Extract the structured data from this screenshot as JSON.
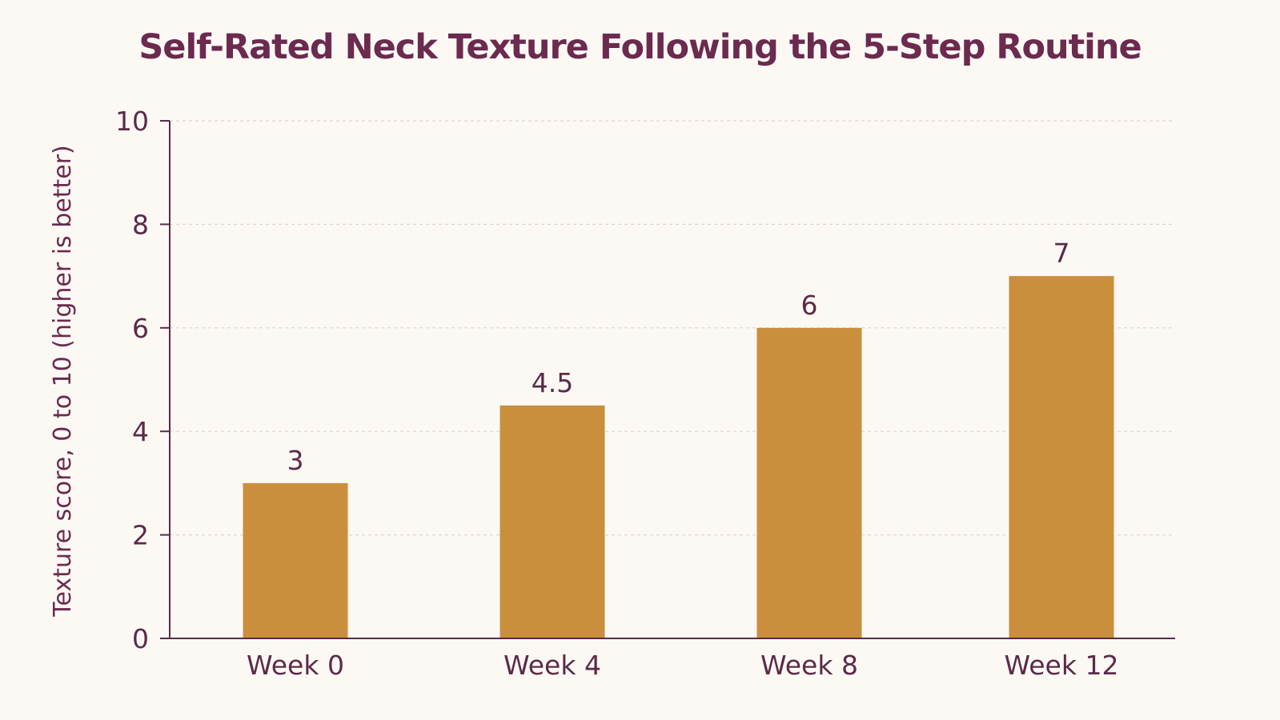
{
  "chart_data": {
    "type": "bar",
    "title": "Self-Rated Neck Texture Following the 5-Step Routine",
    "xlabel": "",
    "ylabel": "Texture score, 0 to 10 (higher is better)",
    "categories": [
      "Week 0",
      "Week 4",
      "Week 8",
      "Week 12"
    ],
    "values": [
      3,
      4.5,
      6,
      7
    ],
    "value_labels": [
      "3",
      "4.5",
      "6",
      "7"
    ],
    "ylim": [
      0,
      10
    ],
    "yticks": [
      0,
      2,
      4,
      6,
      8,
      10
    ],
    "ytick_labels": [
      "0",
      "2",
      "4",
      "6",
      "8",
      "10"
    ],
    "grid": true,
    "legend": "none",
    "colors": {
      "bar": "#c98f3c",
      "text": "#5c2a47",
      "title": "#6b2a4e",
      "axis": "#5c2a47",
      "grid": "#dcd6d0",
      "background": "#fcf9f5"
    }
  }
}
